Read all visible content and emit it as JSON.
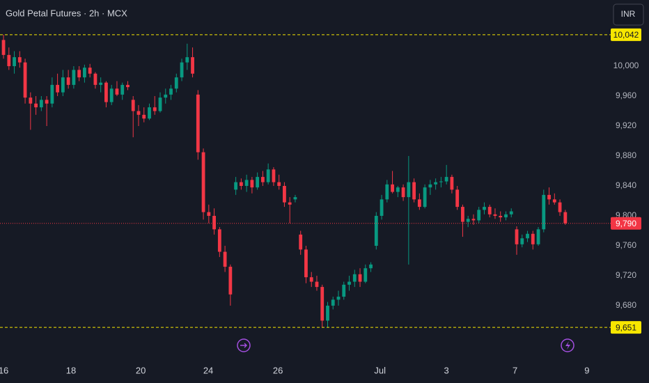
{
  "chart_data": {
    "type": "candlestick",
    "title": "Gold Petal Futures · 2h · MCX",
    "currency": "INR",
    "up_color": "#089981",
    "down_color": "#f23645",
    "grid": false,
    "open": [
      10035,
      10015,
      10000,
      10012,
      10005,
      9958,
      9950,
      9945,
      9955,
      9950,
      9975,
      9965,
      9985,
      9975,
      9995,
      9985,
      9998,
      9990,
      9975,
      9978,
      9952,
      9970,
      9962,
      9975,
      9955,
      9940,
      9935,
      9930,
      9945,
      9940,
      9958,
      9962,
      9970,
      9985,
      10005,
      10012,
      9962,
      9885,
      9805,
      9800,
      9782,
      9752,
      9732,
      9835,
      9845,
      9840,
      9848,
      9838,
      9852,
      9845,
      9862,
      9845,
      9840,
      9818,
      9822,
      9775,
      9755,
      9718,
      9712,
      9705,
      9660,
      9680,
      9688,
      9692,
      9708,
      9712,
      9722,
      9712,
      9730,
      9760,
      9800,
      9822,
      9842,
      9832,
      9838,
      9825,
      9845,
      9822,
      9812,
      9838,
      9842,
      9845,
      9846,
      9852,
      9835,
      9812,
      9792,
      9796,
      9794,
      9808,
      9812,
      9802,
      9800,
      9798,
      9802,
      9782,
      9762,
      9770,
      9776,
      9762,
      9782,
      9828,
      9822,
      9818,
      9805
    ],
    "high": [
      10042,
      10025,
      10020,
      10020,
      10010,
      9965,
      9960,
      9960,
      9960,
      9985,
      9990,
      9995,
      9995,
      10000,
      10000,
      10002,
      10003,
      9992,
      9985,
      9980,
      9975,
      9980,
      9978,
      9980,
      9960,
      9948,
      9945,
      9950,
      9960,
      9965,
      9970,
      9975,
      9990,
      10010,
      10030,
      10025,
      9968,
      9890,
      9815,
      9810,
      9785,
      9760,
      9735,
      9852,
      9850,
      9855,
      9852,
      9858,
      9860,
      9870,
      9865,
      9855,
      9845,
      9825,
      9828,
      9780,
      9760,
      9725,
      9720,
      9708,
      9685,
      9692,
      9700,
      9712,
      9720,
      9728,
      9730,
      9735,
      9738,
      9805,
      9828,
      9848,
      9860,
      9840,
      9842,
      9880,
      9850,
      9830,
      9842,
      9848,
      9850,
      9852,
      9868,
      9855,
      9840,
      9815,
      9800,
      9802,
      9812,
      9818,
      9815,
      9810,
      9806,
      9806,
      9810,
      9786,
      9775,
      9780,
      9780,
      9785,
      9835,
      9838,
      9830,
      9822,
      9808
    ],
    "low": [
      10010,
      9995,
      9990,
      9998,
      9950,
      9915,
      9935,
      9940,
      9920,
      9945,
      9960,
      9960,
      9970,
      9970,
      9980,
      9978,
      9985,
      9970,
      9965,
      9945,
      9948,
      9960,
      9955,
      9968,
      9905,
      9920,
      9925,
      9928,
      9935,
      9938,
      9950,
      9955,
      9965,
      9980,
      9995,
      9985,
      9875,
      9795,
      9790,
      9775,
      9745,
      9725,
      9680,
      9828,
      9835,
      9832,
      9830,
      9835,
      9840,
      9842,
      9840,
      9835,
      9812,
      9790,
      9818,
      9748,
      9710,
      9705,
      9700,
      9651,
      9651,
      9675,
      9680,
      9688,
      9700,
      9705,
      9705,
      9710,
      9725,
      9755,
      9795,
      9818,
      9830,
      9825,
      9820,
      9735,
      9818,
      9808,
      9810,
      9828,
      9835,
      9838,
      9842,
      9830,
      9808,
      9772,
      9785,
      9788,
      9790,
      9802,
      9798,
      9796,
      9792,
      9794,
      9798,
      9748,
      9758,
      9765,
      9755,
      9760,
      9778,
      9815,
      9815,
      9800,
      9788
    ],
    "close": [
      10015,
      10000,
      10012,
      10005,
      9958,
      9950,
      9945,
      9955,
      9950,
      9975,
      9965,
      9985,
      9975,
      9995,
      9985,
      9998,
      9990,
      9975,
      9978,
      9952,
      9970,
      9962,
      9975,
      9972,
      9940,
      9935,
      9930,
      9945,
      9940,
      9958,
      9962,
      9970,
      9985,
      10005,
      10012,
      9990,
      9885,
      9805,
      9800,
      9782,
      9752,
      9732,
      9695,
      9845,
      9840,
      9848,
      9838,
      9852,
      9845,
      9862,
      9845,
      9840,
      9818,
      9815,
      9825,
      9755,
      9718,
      9712,
      9705,
      9660,
      9680,
      9688,
      9692,
      9708,
      9712,
      9722,
      9712,
      9730,
      9735,
      9800,
      9822,
      9842,
      9832,
      9838,
      9825,
      9845,
      9822,
      9812,
      9838,
      9842,
      9845,
      9846,
      9852,
      9835,
      9812,
      9792,
      9796,
      9794,
      9808,
      9812,
      9802,
      9800,
      9798,
      9802,
      9806,
      9762,
      9770,
      9776,
      9762,
      9782,
      9828,
      9822,
      9818,
      9805,
      9790
    ],
    "xlim": [
      -0.65,
      111.5
    ],
    "xticks": [
      {
        "value": 0,
        "label": "16"
      },
      {
        "value": 12.5,
        "label": "18"
      },
      {
        "value": 25.4,
        "label": "20"
      },
      {
        "value": 37.9,
        "label": "24"
      },
      {
        "value": 50.8,
        "label": "26"
      },
      {
        "value": 69.7,
        "label": "Jul"
      },
      {
        "value": 82,
        "label": "3"
      },
      {
        "value": 94.7,
        "label": "7"
      },
      {
        "value": 108,
        "label": "9"
      }
    ],
    "ylim": [
      9632.5,
      10088.4
    ],
    "yticks": [
      {
        "value": 9680,
        "label": "9,680"
      },
      {
        "value": 9720,
        "label": "9,720"
      },
      {
        "value": 9760,
        "label": "9,760"
      },
      {
        "value": 9800,
        "label": "9,800"
      },
      {
        "value": 9840,
        "label": "9,840"
      },
      {
        "value": 9880,
        "label": "9,880"
      },
      {
        "value": 9920,
        "label": "9,920"
      },
      {
        "value": 9960,
        "label": "9,960"
      },
      {
        "value": 10000,
        "label": "10,000"
      }
    ],
    "price_lines": [
      {
        "value": 10042,
        "label": "10,042",
        "color": "#f7e600",
        "style": "dashed",
        "text_color": "#131722"
      },
      {
        "value": 9651,
        "label": "9,651",
        "color": "#f7e600",
        "style": "dashed",
        "text_color": "#131722"
      },
      {
        "value": 9790,
        "label": "9,790",
        "color": "#f23645",
        "style": "dotted",
        "text_color": "#ffffff"
      }
    ]
  }
}
